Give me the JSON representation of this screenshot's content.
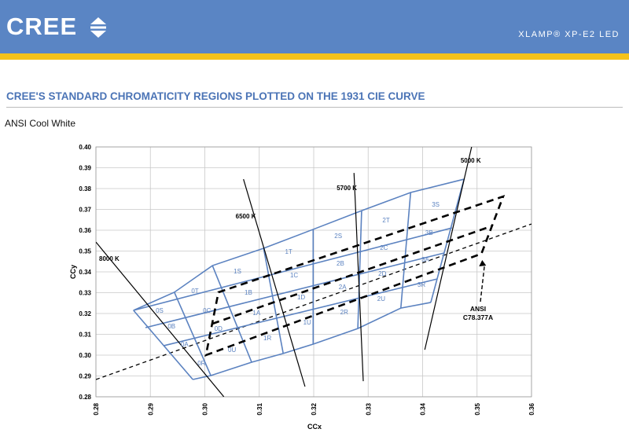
{
  "header": {
    "logo": "CREE",
    "product": "XLAMP® XP-E2 LED"
  },
  "section_title": "CREE'S STANDARD CHROMATICITY REGIONS PLOTTED ON THE 1931 CIE CURVE",
  "subtitle": "ANSI Cool White",
  "chart_data": {
    "type": "chromaticity",
    "xlabel": "CCx",
    "ylabel": "CCy",
    "xlim": [
      0.28,
      0.36
    ],
    "ylim": [
      0.28,
      0.4
    ],
    "xticks": [
      0.28,
      0.29,
      {
        "value": 0.3,
        "label": "0.30"
      },
      0.31,
      0.32,
      0.33,
      0.34,
      0.35,
      0.36
    ],
    "yticks": [
      0.28,
      0.29,
      {
        "value": 0.3,
        "label": "0.30"
      },
      0.31,
      0.32,
      0.33,
      0.34,
      0.35,
      0.36,
      0.37,
      0.38,
      0.39,
      {
        "value": 0.4,
        "label": "0.40"
      }
    ],
    "grid": true,
    "bin_color": "#5b82c0",
    "bin_rows": [
      {
        "points": [
          [
            0.2869,
            0.3215
          ],
          [
            0.2944,
            0.3302
          ],
          [
            0.3014,
            0.343
          ],
          [
            0.3108,
            0.3513
          ],
          [
            0.3199,
            0.3604
          ],
          [
            0.3288,
            0.3694
          ],
          [
            0.3378,
            0.3781
          ],
          [
            0.3476,
            0.3845
          ]
        ]
      },
      {
        "points": [
          [
            0.2869,
            0.3215
          ],
          [
            0.3454,
            0.3611
          ]
        ]
      },
      {
        "points": [
          [
            0.2891,
            0.3132
          ],
          [
            0.344,
            0.3491
          ]
        ]
      },
      {
        "points": [
          [
            0.2924,
            0.3045
          ],
          [
            0.3427,
            0.3366
          ]
        ]
      },
      {
        "points": [
          [
            0.2978,
            0.2883
          ],
          [
            0.3011,
            0.2902
          ],
          [
            0.3086,
            0.2966
          ],
          [
            0.3144,
            0.3008
          ],
          [
            0.3199,
            0.3053
          ],
          [
            0.3281,
            0.3128
          ],
          [
            0.336,
            0.3226
          ],
          [
            0.3415,
            0.3253
          ]
        ]
      }
    ],
    "bin_columns": [
      {
        "points": [
          [
            0.2869,
            0.3215
          ],
          [
            0.2978,
            0.2883
          ]
        ]
      },
      {
        "points": [
          [
            0.2944,
            0.3302
          ],
          [
            0.3011,
            0.2902
          ]
        ]
      },
      {
        "points": [
          [
            0.3014,
            0.343
          ],
          [
            0.3086,
            0.2966
          ]
        ]
      },
      {
        "points": [
          [
            0.3108,
            0.3513
          ],
          [
            0.3144,
            0.3008
          ]
        ]
      },
      {
        "points": [
          [
            0.3199,
            0.3604
          ],
          [
            0.3199,
            0.3053
          ]
        ]
      },
      {
        "points": [
          [
            0.3288,
            0.3694
          ],
          [
            0.3281,
            0.3128
          ]
        ]
      },
      {
        "points": [
          [
            0.3378,
            0.3781
          ],
          [
            0.336,
            0.3226
          ]
        ]
      },
      {
        "points": [
          [
            0.3476,
            0.3845
          ],
          [
            0.3415,
            0.3253
          ]
        ]
      }
    ],
    "bins": [
      {
        "name": "0S",
        "x": 0.2917,
        "y": 0.3215
      },
      {
        "name": "0T",
        "x": 0.2982,
        "y": 0.3309
      },
      {
        "name": "0B",
        "x": 0.2939,
        "y": 0.314
      },
      {
        "name": "0C",
        "x": 0.3004,
        "y": 0.3215
      },
      {
        "name": "0A",
        "x": 0.2963,
        "y": 0.3053
      },
      {
        "name": "0D",
        "x": 0.3025,
        "y": 0.3128
      },
      {
        "name": "0R",
        "x": 0.2994,
        "y": 0.2962
      },
      {
        "name": "0U",
        "x": 0.305,
        "y": 0.3026
      },
      {
        "name": "1S",
        "x": 0.306,
        "y": 0.3404
      },
      {
        "name": "1T",
        "x": 0.3154,
        "y": 0.3498
      },
      {
        "name": "1B",
        "x": 0.308,
        "y": 0.3302
      },
      {
        "name": "1C",
        "x": 0.3164,
        "y": 0.3385
      },
      {
        "name": "1A",
        "x": 0.3095,
        "y": 0.3204
      },
      {
        "name": "1D",
        "x": 0.3177,
        "y": 0.3279
      },
      {
        "name": "1R",
        "x": 0.3115,
        "y": 0.3083
      },
      {
        "name": "1U",
        "x": 0.3188,
        "y": 0.3158
      },
      {
        "name": "2S",
        "x": 0.3245,
        "y": 0.3574
      },
      {
        "name": "2T",
        "x": 0.3333,
        "y": 0.3649
      },
      {
        "name": "2B",
        "x": 0.3249,
        "y": 0.3442
      },
      {
        "name": "2C",
        "x": 0.3329,
        "y": 0.3517
      },
      {
        "name": "2A",
        "x": 0.3253,
        "y": 0.3328
      },
      {
        "name": "2D",
        "x": 0.3326,
        "y": 0.3392
      },
      {
        "name": "2R",
        "x": 0.3256,
        "y": 0.3208
      },
      {
        "name": "2U",
        "x": 0.3324,
        "y": 0.3272
      },
      {
        "name": "3S",
        "x": 0.3424,
        "y": 0.3725
      },
      {
        "name": "3B",
        "x": 0.3412,
        "y": 0.3589
      },
      {
        "name": "3A",
        "x": 0.3405,
        "y": 0.346
      },
      {
        "name": "3R",
        "x": 0.3398,
        "y": 0.334
      }
    ],
    "isotherms": [
      {
        "name": "8000 K",
        "points": [
          [
            0.28,
            0.3543
          ],
          [
            0.3035,
            0.28
          ]
        ]
      },
      {
        "name": "6500 K",
        "points": [
          [
            0.3071,
            0.3845
          ],
          [
            0.3184,
            0.2849
          ]
        ]
      },
      {
        "name": "5700 K",
        "points": [
          [
            0.3274,
            0.3875
          ],
          [
            0.3291,
            0.2875
          ]
        ]
      },
      {
        "name": "5000 K",
        "points": [
          [
            0.349,
            0.4
          ],
          [
            0.3404,
            0.3026
          ]
        ]
      }
    ],
    "planckian": {
      "points": [
        [
          0.28,
          0.2883
        ],
        [
          0.36,
          0.363
        ]
      ]
    },
    "ansi": {
      "label": [
        "ANSI",
        "C78.377A"
      ],
      "points": [
        [
          0.3025,
          0.3302
        ],
        [
          0.3548,
          0.3762
        ],
        [
          0.3508,
          0.3487
        ],
        [
          0.3002,
          0.3
        ]
      ],
      "mid": [
        [
          0.3014,
          0.3151
        ],
        [
          0.3526,
          0.3619
        ]
      ]
    }
  }
}
